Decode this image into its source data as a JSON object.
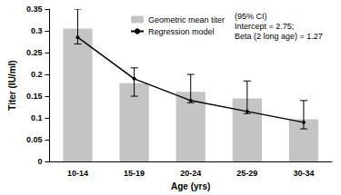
{
  "chart_data": {
    "type": "bar",
    "x_label": "Age (yrs)",
    "y_label": "Titer (IU/ml)",
    "categories": [
      "10-14",
      "15-19",
      "20-24",
      "25-29",
      "30-34"
    ],
    "series": [
      {
        "name": "Geometric mean titer",
        "type": "bar",
        "color": "#c4c4c4",
        "values": [
          0.305,
          0.18,
          0.16,
          0.145,
          0.097
        ],
        "ci_low": [
          0.27,
          0.15,
          0.135,
          0.11,
          0.075
        ],
        "ci_high": [
          0.35,
          0.215,
          0.2,
          0.185,
          0.14
        ]
      },
      {
        "name": "Regression model",
        "type": "line",
        "color": "#000000",
        "marker": "circle",
        "line_style": "solid",
        "values": [
          0.285,
          0.19,
          0.14,
          0.115,
          0.09
        ]
      }
    ],
    "annotations": [
      "(95% CI)",
      "Intercept = 2.75;",
      "Beta (2 long age) = 1.27"
    ],
    "ylim": [
      0,
      0.35
    ],
    "yticks": [
      0,
      0.05,
      0.1,
      0.15,
      0.2,
      0.25,
      0.3,
      0.35
    ],
    "grid": false,
    "legend": "upper right"
  }
}
